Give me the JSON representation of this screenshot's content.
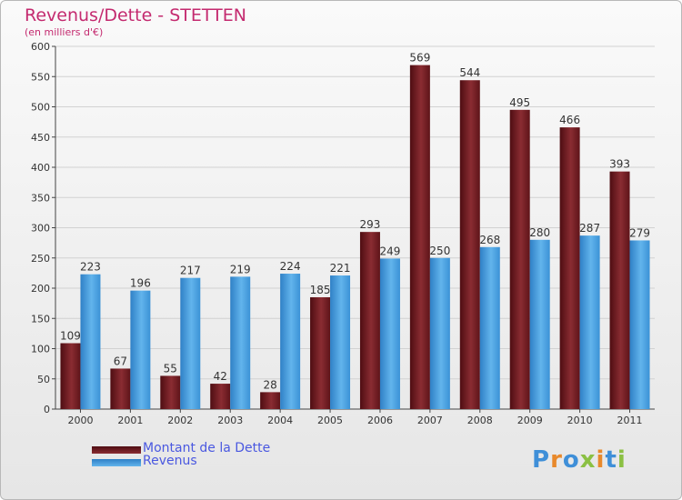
{
  "title": "Revenus/Dette - STETTEN",
  "subtitle": "(en milliers d'€)",
  "logo": {
    "text": "Proxiti",
    "letter_colors": [
      "#3f8fd8",
      "#e8892b",
      "#3f8fd8",
      "#8bc043",
      "#e8892b",
      "#3f8fd8",
      "#8bc043"
    ]
  },
  "legend": [
    {
      "label": "Montant de la Dette",
      "color": "#6b1a1f"
    },
    {
      "label": "Revenus",
      "color": "#3d95d8"
    }
  ],
  "chart_data": {
    "type": "bar",
    "categories": [
      "2000",
      "2001",
      "2002",
      "2003",
      "2004",
      "2005",
      "2006",
      "2007",
      "2008",
      "2009",
      "2010",
      "2011"
    ],
    "series": [
      {
        "name": "Montant de la Dette",
        "color": "#6b1a1f",
        "values": [
          109,
          67,
          55,
          42,
          28,
          185,
          293,
          569,
          544,
          495,
          466,
          393
        ]
      },
      {
        "name": "Revenus",
        "color": "#3d95d8",
        "values": [
          223,
          196,
          217,
          219,
          224,
          221,
          249,
          250,
          268,
          280,
          287,
          279
        ]
      }
    ],
    "ylim": [
      0,
      600
    ],
    "yticks": [
      0,
      50,
      100,
      150,
      200,
      250,
      300,
      350,
      400,
      450,
      500,
      550,
      600
    ],
    "grid": true,
    "legend_position": "bottom-left"
  }
}
